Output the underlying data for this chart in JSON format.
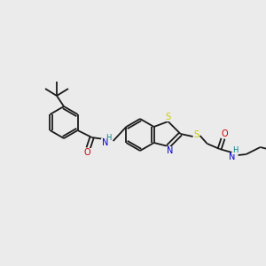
{
  "background_color": "#ebebeb",
  "bond_color": "#1a1a1a",
  "atom_colors": {
    "S": "#cccc00",
    "N": "#0000cc",
    "O": "#cc0000",
    "H": "#008080",
    "C": "#1a1a1a"
  },
  "figsize": [
    3.0,
    3.0
  ],
  "dpi": 100
}
